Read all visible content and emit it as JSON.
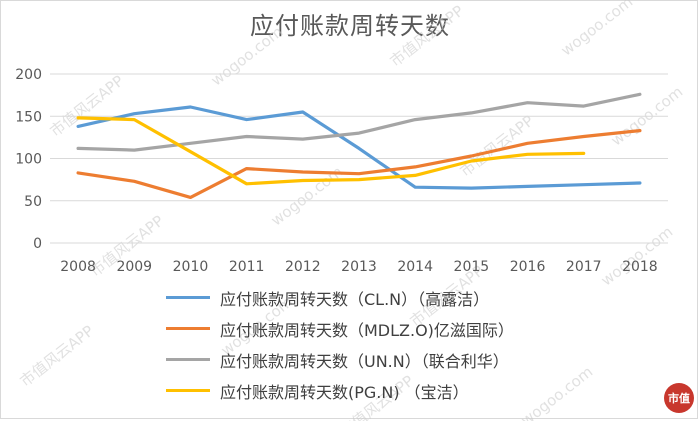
{
  "colors": {
    "grid": "#d9d9d9",
    "axis_text": "#595959",
    "watermark": "#c9c9c9",
    "brand": "#c8372d"
  },
  "watermark": {
    "texts": [
      "市值风云APP",
      "wogoo.com"
    ]
  },
  "brand_mark": {
    "text": "市值"
  },
  "chart_data": {
    "type": "line",
    "title": "应付账款周转天数",
    "xlabel": "",
    "ylabel": "",
    "categories": [
      "2008",
      "2009",
      "2010",
      "2011",
      "2012",
      "2013",
      "2014",
      "2015",
      "2016",
      "2017",
      "2018"
    ],
    "ylim": [
      0,
      200
    ],
    "yticks": [
      0,
      50,
      100,
      150,
      200
    ],
    "grid": true,
    "legend_position": "bottom",
    "series": [
      {
        "name": "应付账款周转天数（CL.N）（高露洁）",
        "color": "#5b9bd5",
        "values": [
          138,
          153,
          161,
          146,
          155,
          112,
          66,
          65,
          67,
          69,
          71
        ]
      },
      {
        "name": "应付账款周转天数（MDLZ.O)亿滋国际）",
        "color": "#ed7d31",
        "values": [
          83,
          73,
          54,
          88,
          84,
          82,
          90,
          103,
          118,
          126,
          133
        ]
      },
      {
        "name": "应付账款周转天数（UN.N）（联合利华）",
        "color": "#a5a5a5",
        "values": [
          112,
          110,
          118,
          126,
          123,
          130,
          146,
          154,
          166,
          162,
          176
        ]
      },
      {
        "name": "应付账款周转天数(PG.N) （宝洁）",
        "color": "#ffc000",
        "values": [
          148,
          146,
          108,
          70,
          74,
          75,
          80,
          97,
          105,
          106,
          null
        ]
      }
    ]
  }
}
